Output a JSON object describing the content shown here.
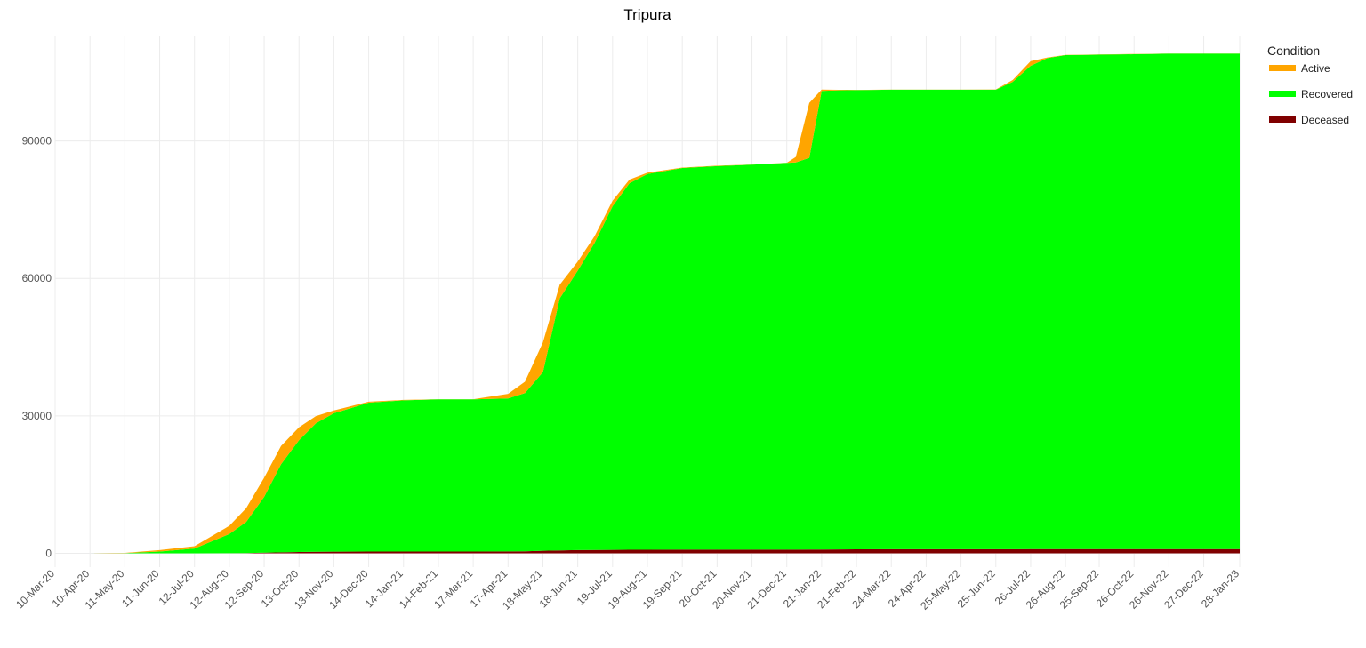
{
  "chart_data": {
    "type": "area",
    "title": "Tripura",
    "xlabel": "",
    "ylabel": "",
    "ylim": [
      -3000,
      113000
    ],
    "y_ticks": [
      0,
      30000,
      60000,
      90000
    ],
    "x_ticks": [
      "10-Mar-20",
      "10-Apr-20",
      "11-May-20",
      "11-Jun-20",
      "12-Jul-20",
      "12-Aug-20",
      "12-Sep-20",
      "13-Oct-20",
      "13-Nov-20",
      "14-Dec-20",
      "14-Jan-21",
      "14-Feb-21",
      "17-Mar-21",
      "17-Apr-21",
      "18-May-21",
      "18-Jun-21",
      "19-Jul-21",
      "19-Aug-21",
      "19-Sep-21",
      "20-Oct-21",
      "20-Nov-21",
      "21-Dec-21",
      "21-Jan-22",
      "21-Feb-22",
      "24-Mar-22",
      "24-Apr-22",
      "25-May-22",
      "25-Jun-22",
      "26-Jul-22",
      "26-Aug-22",
      "25-Sep-22",
      "26-Oct-22",
      "26-Nov-22",
      "27-Dec-22",
      "28-Jan-23"
    ],
    "grid": true,
    "stacked": true,
    "legend": {
      "title": "Condition",
      "position": "top-right"
    },
    "x": [
      "10-Mar-20",
      "10-Apr-20",
      "11-May-20",
      "11-Jun-20",
      "12-Jul-20",
      "12-Aug-20",
      "27-Aug-20",
      "12-Sep-20",
      "27-Sep-20",
      "13-Oct-20",
      "28-Oct-20",
      "13-Nov-20",
      "14-Dec-20",
      "14-Jan-21",
      "14-Feb-21",
      "17-Mar-21",
      "17-Apr-21",
      "2-May-21",
      "18-May-21",
      "2-Jun-21",
      "18-Jun-21",
      "3-Jul-21",
      "19-Jul-21",
      "3-Aug-21",
      "19-Aug-21",
      "19-Sep-21",
      "20-Oct-21",
      "20-Nov-21",
      "21-Dec-21",
      "29-Dec-21",
      "10-Jan-22",
      "21-Jan-22",
      "5-Feb-22",
      "21-Feb-22",
      "24-Mar-22",
      "24-Apr-22",
      "25-May-22",
      "25-Jun-22",
      "10-Jul-22",
      "26-Jul-22",
      "10-Aug-22",
      "26-Aug-22",
      "25-Sep-22",
      "26-Oct-22",
      "26-Nov-22",
      "27-Dec-22",
      "28-Jan-23"
    ],
    "series": [
      {
        "name": "Deceased",
        "color": "#800000",
        "values": [
          0,
          0,
          0,
          0,
          0,
          20,
          60,
          140,
          220,
          300,
          360,
          380,
          390,
          395,
          395,
          400,
          410,
          460,
          560,
          650,
          700,
          740,
          760,
          780,
          790,
          800,
          810,
          810,
          810,
          810,
          815,
          830,
          860,
          880,
          890,
          890,
          895,
          895,
          900,
          910,
          920,
          930,
          935,
          935,
          935,
          935,
          935
        ]
      },
      {
        "name": "Recovered",
        "color": "#00ff00",
        "values": [
          0,
          0,
          50,
          400,
          1050,
          4200,
          6800,
          12200,
          19200,
          24400,
          28000,
          30200,
          32500,
          33000,
          33200,
          33200,
          33400,
          34500,
          39000,
          55000,
          61000,
          67000,
          75000,
          80000,
          82000,
          83300,
          83700,
          84000,
          84400,
          84500,
          85500,
          100100,
          100200,
          100200,
          100300,
          100300,
          100300,
          100300,
          102000,
          105500,
          107200,
          107800,
          107900,
          108000,
          108100,
          108100,
          108100
        ]
      },
      {
        "name": "Active",
        "color": "#ffa500",
        "values": [
          0,
          0,
          50,
          300,
          500,
          1800,
          3000,
          4200,
          4000,
          2800,
          1600,
          600,
          200,
          100,
          50,
          50,
          1000,
          2500,
          6500,
          3000,
          2000,
          1500,
          1200,
          800,
          300,
          100,
          100,
          50,
          30,
          1200,
          12000,
          300,
          100,
          60,
          30,
          20,
          20,
          50,
          400,
          1000,
          100,
          60,
          40,
          40,
          30,
          30,
          20
        ]
      }
    ]
  }
}
